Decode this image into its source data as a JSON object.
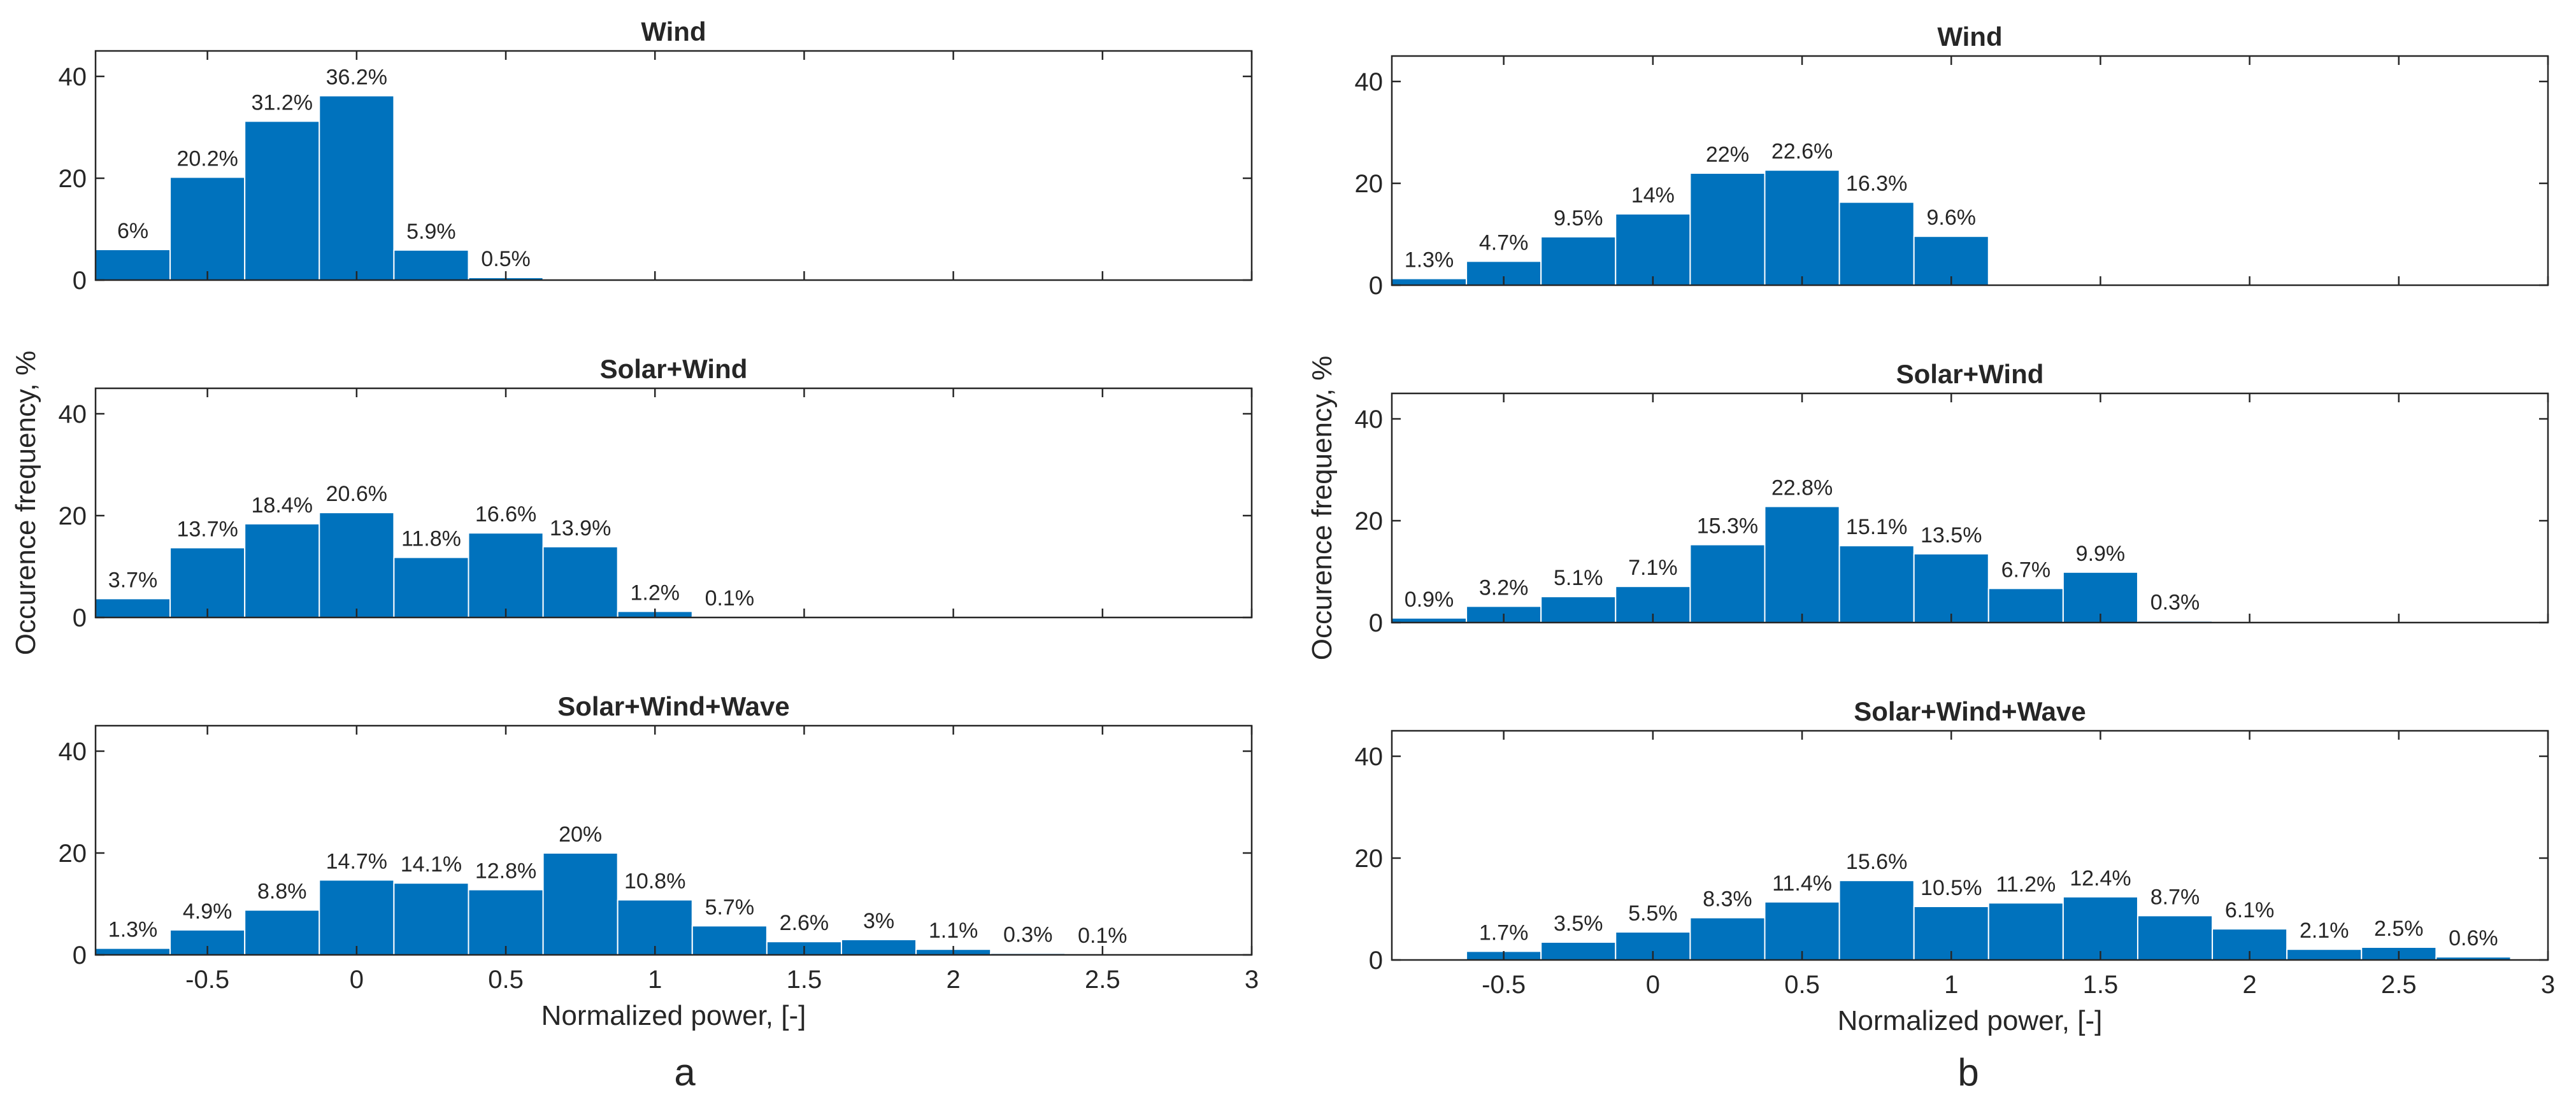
{
  "chart_data": [
    {
      "type": "bar",
      "panel": "a",
      "panel_label": "a",
      "xlabel": "Normalized power, [-]",
      "ylabel": "Occurence frequency, %",
      "xlim": [
        -0.875,
        3.0
      ],
      "xticks": [
        -0.5,
        0,
        0.5,
        1,
        1.5,
        2,
        2.5,
        3
      ],
      "xtick_labels": [
        "-0.5",
        "0",
        "0.5",
        "1",
        "1.5",
        "2",
        "2.5",
        "3"
      ],
      "ylim": [
        0,
        45
      ],
      "yticks": [
        0,
        20,
        40
      ],
      "ytick_labels": [
        "0",
        "20",
        "40"
      ],
      "bin_width": 0.25,
      "color": "#0072BD",
      "subplots": [
        {
          "title": "Wind",
          "bin_start": -0.875,
          "values": [
            6,
            20.2,
            31.2,
            36.2,
            5.9,
            0.5
          ],
          "labels": [
            "6%",
            "20.2%",
            "31.2%",
            "36.2%",
            "5.9%",
            "0.5%"
          ]
        },
        {
          "title": "Solar+Wind",
          "bin_start": -0.875,
          "values": [
            3.7,
            13.7,
            18.4,
            20.6,
            11.8,
            16.6,
            13.9,
            1.2,
            0.1
          ],
          "labels": [
            "3.7%",
            "13.7%",
            "18.4%",
            "20.6%",
            "11.8%",
            "16.6%",
            "13.9%",
            "1.2%",
            "0.1%"
          ]
        },
        {
          "title": "Solar+Wind+Wave",
          "bin_start": -0.875,
          "values": [
            1.3,
            4.9,
            8.8,
            14.7,
            14.1,
            12.8,
            20,
            10.8,
            5.7,
            2.6,
            3,
            1.1,
            0.3,
            0.1
          ],
          "labels": [
            "1.3%",
            "4.9%",
            "8.8%",
            "14.7%",
            "14.1%",
            "12.8%",
            "20%",
            "10.8%",
            "5.7%",
            "2.6%",
            "3%",
            "1.1%",
            "0.3%",
            "0.1%"
          ]
        }
      ]
    },
    {
      "type": "bar",
      "panel": "b",
      "panel_label": "b",
      "xlabel": "Normalized power, [-]",
      "ylabel": "Occurence frequency, %",
      "xlim": [
        -0.875,
        3.0
      ],
      "xticks": [
        -0.5,
        0,
        0.5,
        1,
        1.5,
        2,
        2.5,
        3
      ],
      "xtick_labels": [
        "-0.5",
        "0",
        "0.5",
        "1",
        "1.5",
        "2",
        "2.5",
        "3"
      ],
      "ylim": [
        0,
        45
      ],
      "yticks": [
        0,
        20,
        40
      ],
      "ytick_labels": [
        "0",
        "20",
        "40"
      ],
      "bin_width": 0.25,
      "color": "#0072BD",
      "subplots": [
        {
          "title": "Wind",
          "bin_start": -0.875,
          "values": [
            1.3,
            4.7,
            9.5,
            14,
            22,
            22.6,
            16.3,
            9.6
          ],
          "labels": [
            "1.3%",
            "4.7%",
            "9.5%",
            "14%",
            "22%",
            "22.6%",
            "16.3%",
            "9.6%"
          ]
        },
        {
          "title": "Solar+Wind",
          "bin_start": -0.875,
          "values": [
            0.9,
            3.2,
            5.1,
            7.1,
            15.3,
            22.8,
            15.1,
            13.5,
            6.7,
            9.9,
            0.3
          ],
          "labels": [
            "0.9%",
            "3.2%",
            "5.1%",
            "7.1%",
            "15.3%",
            "22.8%",
            "15.1%",
            "13.5%",
            "6.7%",
            "9.9%",
            "0.3%"
          ]
        },
        {
          "title": "Solar+Wind+Wave",
          "bin_start": -0.625,
          "values": [
            1.7,
            3.5,
            5.5,
            8.3,
            11.4,
            15.6,
            10.5,
            11.2,
            12.4,
            8.7,
            6.1,
            2.1,
            2.5,
            0.6
          ],
          "labels": [
            "1.7%",
            "3.5%",
            "5.5%",
            "8.3%",
            "11.4%",
            "15.6%",
            "10.5%",
            "11.2%",
            "12.4%",
            "8.7%",
            "6.1%",
            "2.1%",
            "2.5%",
            "0.6%"
          ]
        }
      ]
    }
  ]
}
